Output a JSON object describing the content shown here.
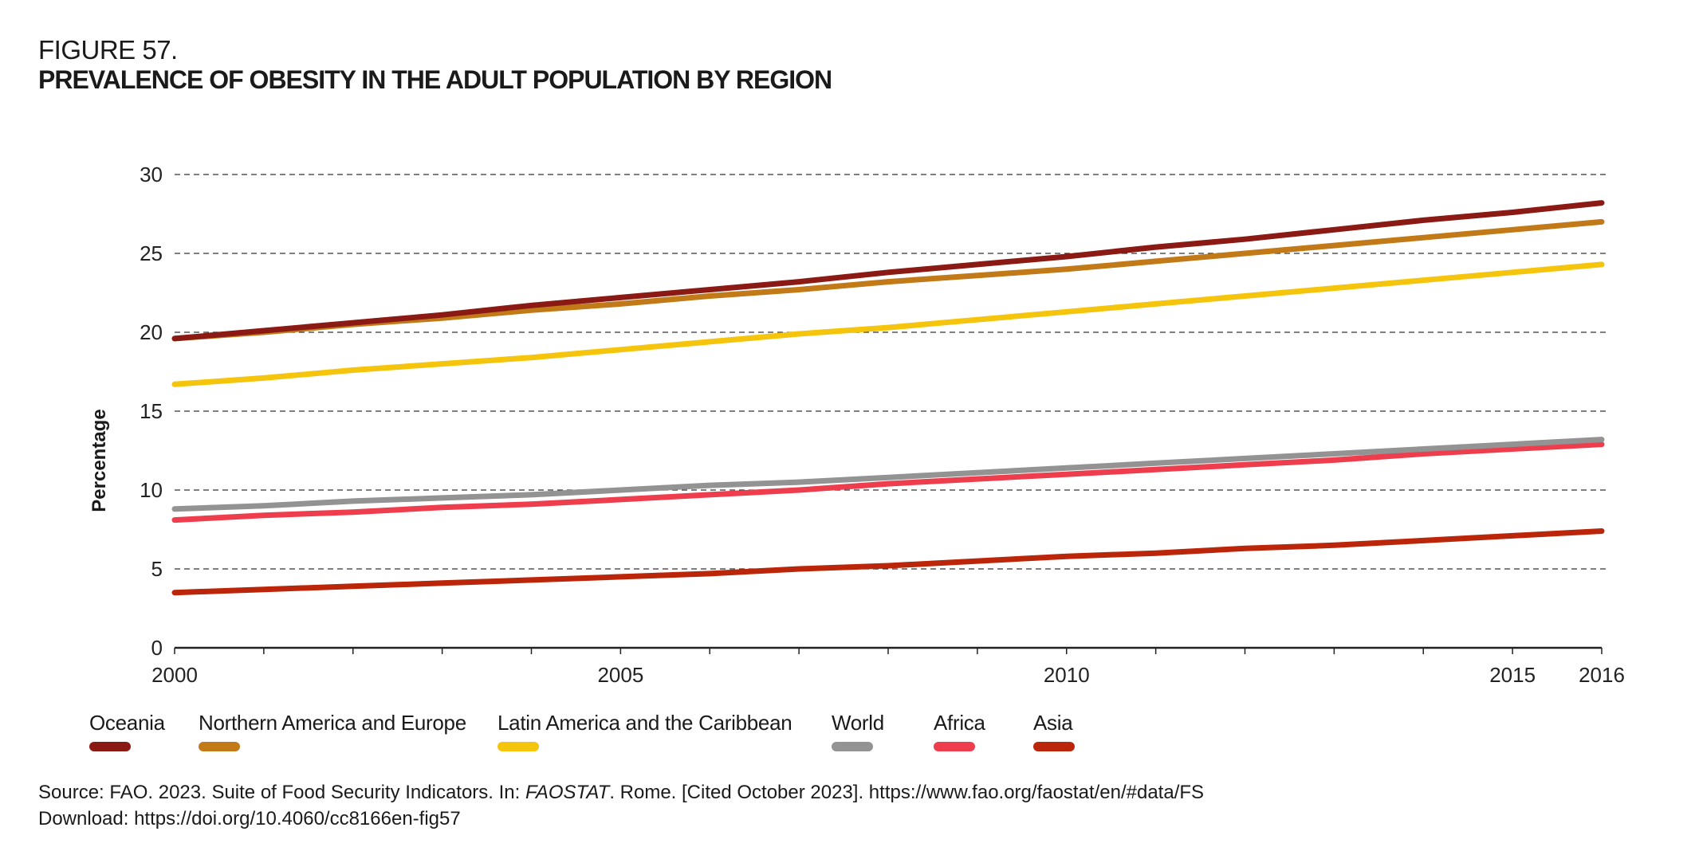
{
  "figure": {
    "number": "FIGURE 57.",
    "title": "PREVALENCE OF OBESITY IN THE ADULT POPULATION BY REGION"
  },
  "chart_data": {
    "type": "line",
    "title": "PREVALENCE OF OBESITY IN THE ADULT POPULATION BY REGION",
    "xlabel": "",
    "ylabel": "Percentage",
    "ylim": [
      0,
      30
    ],
    "xlim": [
      2000,
      2016
    ],
    "yticks": [
      0,
      5,
      10,
      15,
      20,
      25,
      30
    ],
    "xtick_labels": [
      "2000",
      "2005",
      "2010",
      "2015",
      "2016"
    ],
    "xtick_label_years": [
      2000,
      2005,
      2010,
      2015,
      2016
    ],
    "xticks_minor_every_year": true,
    "grid": "horizontal dashed",
    "legend_position": "bottom",
    "x": [
      2000,
      2001,
      2002,
      2003,
      2004,
      2005,
      2006,
      2007,
      2008,
      2009,
      2010,
      2011,
      2012,
      2013,
      2014,
      2015,
      2016
    ],
    "series": [
      {
        "name": "Oceania",
        "color": "#8b1a14",
        "values": [
          19.6,
          20.1,
          20.6,
          21.1,
          21.7,
          22.2,
          22.7,
          23.2,
          23.8,
          24.3,
          24.8,
          25.4,
          25.9,
          26.5,
          27.1,
          27.6,
          28.2
        ]
      },
      {
        "name": "Northern America and Europe",
        "color": "#c27a18",
        "values": [
          19.6,
          20.0,
          20.5,
          20.9,
          21.4,
          21.8,
          22.3,
          22.7,
          23.2,
          23.6,
          24.0,
          24.5,
          25.0,
          25.5,
          26.0,
          26.5,
          27.0
        ]
      },
      {
        "name": "Latin America and the Caribbean",
        "color": "#f5c40c",
        "values": [
          16.7,
          17.1,
          17.6,
          18.0,
          18.4,
          18.9,
          19.4,
          19.9,
          20.3,
          20.8,
          21.3,
          21.8,
          22.3,
          22.8,
          23.3,
          23.8,
          24.3
        ]
      },
      {
        "name": "World",
        "color": "#939393",
        "values": [
          8.8,
          9.0,
          9.3,
          9.5,
          9.7,
          10.0,
          10.3,
          10.5,
          10.8,
          11.1,
          11.4,
          11.7,
          12.0,
          12.3,
          12.6,
          12.9,
          13.2
        ]
      },
      {
        "name": "Africa",
        "color": "#ee3e4d",
        "values": [
          8.1,
          8.4,
          8.6,
          8.9,
          9.1,
          9.4,
          9.7,
          10.0,
          10.4,
          10.7,
          11.0,
          11.3,
          11.6,
          11.9,
          12.3,
          12.6,
          12.9
        ]
      },
      {
        "name": "Asia",
        "color": "#bb2509",
        "values": [
          3.5,
          3.7,
          3.9,
          4.1,
          4.3,
          4.5,
          4.7,
          5.0,
          5.2,
          5.5,
          5.8,
          6.0,
          6.3,
          6.5,
          6.8,
          7.1,
          7.4
        ]
      }
    ]
  },
  "legend": [
    {
      "label": "Oceania",
      "color": "#8b1a14"
    },
    {
      "label": "Northern America and Europe",
      "color": "#c27a18"
    },
    {
      "label": "Latin America and the Caribbean",
      "color": "#f5c40c"
    },
    {
      "label": "World",
      "color": "#939393"
    },
    {
      "label": "Africa",
      "color": "#ee3e4d"
    },
    {
      "label": "Asia",
      "color": "#bb2509"
    }
  ],
  "source": {
    "prefix": "Source: FAO. 2023. Suite of Food Security Indicators. In: ",
    "italic": "FAOSTAT",
    "suffix": ". Rome. [Cited October 2023]. https://www.fao.org/faostat/en/#data/FS",
    "download": "Download: https://doi.org/10.4060/cc8166en-fig57"
  }
}
